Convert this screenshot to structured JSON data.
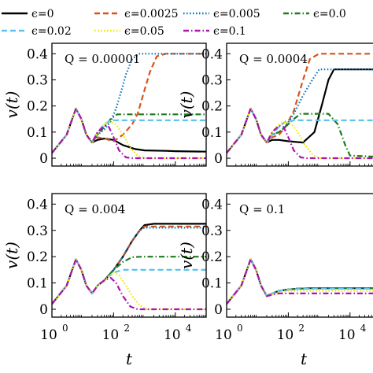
{
  "chart_data": {
    "type": "line",
    "panel_layout": "2x2 grid, right column cropped at image edge",
    "xlabel": "t",
    "ylabel": "v(t)",
    "xscale": "log",
    "xlim": [
      1,
      100000
    ],
    "ylim": [
      -0.03,
      0.44
    ],
    "xtick_labels": [
      {
        "base": "10",
        "exp": "0"
      },
      {
        "base": "10",
        "exp": "2"
      },
      {
        "base": "10",
        "exp": "4"
      }
    ],
    "ytick_labels": [
      "0",
      "0.1",
      "0.2",
      "0.3",
      "0.4"
    ],
    "grid": false,
    "legend": {
      "placement": "top, above panels, 4 columns",
      "entries": [
        {
          "text": "ϵ=0",
          "color": "#000000",
          "dash": "solid"
        },
        {
          "text": "ϵ=0.0025",
          "color": "#d95319",
          "dash": "dashed"
        },
        {
          "text": "ϵ=0.005",
          "color": "#0072bd",
          "dash": "dotted"
        },
        {
          "text": "ϵ=0.0",
          "color": "#1e7b1e",
          "dash": "dashdot"
        },
        {
          "text": "ϵ=0.02",
          "color": "#5fc3ee",
          "dash": "dashed"
        },
        {
          "text": "ϵ=0.05",
          "color": "#f2e600",
          "dash": "dotted"
        },
        {
          "text": "ϵ=0.1",
          "color": "#b012b0",
          "dash": "dashdot"
        }
      ]
    },
    "panels": [
      {
        "label": "Q = 0.00001",
        "series": [
          {
            "name": "ϵ=0",
            "x": [
              1,
              3,
              6,
              9,
              13,
              20,
              30,
              50,
              100,
              200,
              500,
              1000,
              5000,
              10000,
              100000
            ],
            "y": [
              0.02,
              0.09,
              0.19,
              0.15,
              0.09,
              0.06,
              0.07,
              0.075,
              0.07,
              0.05,
              0.035,
              0.03,
              0.028,
              0.027,
              0.025
            ]
          },
          {
            "name": "ϵ=0.0025",
            "x": [
              1,
              3,
              6,
              9,
              13,
              20,
              30,
              50,
              100,
              200,
              400,
              600,
              1000,
              1500,
              2500,
              5000,
              100000
            ],
            "y": [
              0.02,
              0.09,
              0.19,
              0.15,
              0.09,
              0.06,
              0.08,
              0.075,
              0.065,
              0.09,
              0.13,
              0.17,
              0.26,
              0.33,
              0.39,
              0.4,
              0.4
            ]
          },
          {
            "name": "ϵ=0.005",
            "x": [
              1,
              3,
              6,
              9,
              13,
              20,
              30,
              50,
              80,
              120,
              180,
              250,
              400,
              700,
              1000,
              100000
            ],
            "y": [
              0.02,
              0.09,
              0.19,
              0.15,
              0.09,
              0.06,
              0.09,
              0.11,
              0.14,
              0.19,
              0.26,
              0.32,
              0.38,
              0.4,
              0.4,
              0.4
            ]
          },
          {
            "name": "ϵ=0.0",
            "x": [
              1,
              3,
              6,
              9,
              13,
              20,
              30,
              50,
              80,
              130,
              100000
            ],
            "y": [
              0.02,
              0.09,
              0.19,
              0.15,
              0.09,
              0.06,
              0.09,
              0.12,
              0.15,
              0.168,
              0.168
            ]
          },
          {
            "name": "ϵ=0.02",
            "x": [
              1,
              3,
              6,
              9,
              13,
              20,
              30,
              50,
              80,
              100000
            ],
            "y": [
              0.02,
              0.09,
              0.19,
              0.15,
              0.09,
              0.06,
              0.1,
              0.13,
              0.145,
              0.145
            ]
          },
          {
            "name": "ϵ=0.05",
            "x": [
              1,
              3,
              6,
              9,
              13,
              20,
              30,
              50,
              80,
              120,
              200,
              350,
              600,
              1000,
              100000
            ],
            "y": [
              0.02,
              0.09,
              0.19,
              0.15,
              0.09,
              0.06,
              0.1,
              0.13,
              0.14,
              0.13,
              0.09,
              0.04,
              0.01,
              0,
              0
            ]
          },
          {
            "name": "ϵ=0.1",
            "x": [
              1,
              3,
              6,
              9,
              13,
              20,
              30,
              50,
              70,
              100,
              150,
              250,
              400,
              100000
            ],
            "y": [
              0.02,
              0.09,
              0.19,
              0.15,
              0.09,
              0.06,
              0.1,
              0.125,
              0.12,
              0.08,
              0.03,
              0.003,
              0,
              0
            ]
          }
        ]
      },
      {
        "label": "Q = 0.0004",
        "series": [
          {
            "name": "ϵ=0",
            "x": [
              1,
              3,
              6,
              9,
              13,
              20,
              30,
              50,
              100,
              300,
              700,
              1200,
              2000,
              3000,
              100000
            ],
            "y": [
              0.02,
              0.09,
              0.19,
              0.15,
              0.09,
              0.06,
              0.07,
              0.07,
              0.065,
              0.06,
              0.1,
              0.2,
              0.3,
              0.34,
              0.34
            ]
          },
          {
            "name": "ϵ=0.0025",
            "x": [
              1,
              3,
              6,
              9,
              13,
              20,
              30,
              50,
              80,
              150,
              300,
              500,
              1000,
              100000
            ],
            "y": [
              0.02,
              0.09,
              0.19,
              0.15,
              0.09,
              0.06,
              0.08,
              0.09,
              0.12,
              0.18,
              0.3,
              0.38,
              0.4,
              0.4
            ]
          },
          {
            "name": "ϵ=0.005",
            "x": [
              1,
              3,
              6,
              9,
              13,
              20,
              30,
              50,
              80,
              150,
              300,
              600,
              1000,
              2500,
              100000
            ],
            "y": [
              0.02,
              0.09,
              0.19,
              0.15,
              0.09,
              0.06,
              0.09,
              0.1,
              0.12,
              0.17,
              0.24,
              0.3,
              0.34,
              0.34,
              0.34
            ]
          },
          {
            "name": "ϵ=0.0",
            "x": [
              1,
              3,
              6,
              9,
              13,
              20,
              30,
              50,
              80,
              150,
              250,
              400,
              600,
              2000,
              4000,
              7000,
              10000,
              100000
            ],
            "y": [
              0.02,
              0.09,
              0.19,
              0.15,
              0.09,
              0.06,
              0.09,
              0.1,
              0.12,
              0.15,
              0.17,
              0.17,
              0.17,
              0.17,
              0.13,
              0.05,
              0.01,
              0.005
            ]
          },
          {
            "name": "ϵ=0.02",
            "x": [
              1,
              3,
              6,
              9,
              13,
              20,
              30,
              50,
              80,
              150,
              100000
            ],
            "y": [
              0.02,
              0.09,
              0.19,
              0.15,
              0.09,
              0.06,
              0.09,
              0.12,
              0.14,
              0.145,
              0.145
            ]
          },
          {
            "name": "ϵ=0.05",
            "x": [
              1,
              3,
              6,
              9,
              13,
              20,
              30,
              50,
              80,
              130,
              200,
              350,
              600,
              1000,
              100000
            ],
            "y": [
              0.02,
              0.09,
              0.19,
              0.15,
              0.09,
              0.06,
              0.1,
              0.13,
              0.14,
              0.13,
              0.1,
              0.05,
              0.015,
              0,
              0
            ]
          },
          {
            "name": "ϵ=0.1",
            "x": [
              1,
              3,
              6,
              9,
              13,
              20,
              30,
              50,
              70,
              100,
              150,
              250,
              400,
              100000
            ],
            "y": [
              0.02,
              0.09,
              0.19,
              0.15,
              0.09,
              0.06,
              0.1,
              0.125,
              0.12,
              0.08,
              0.03,
              0.003,
              0,
              0
            ]
          }
        ]
      },
      {
        "label": "Q = 0.004",
        "series": [
          {
            "name": "ϵ=0",
            "x": [
              1,
              3,
              6,
              9,
              13,
              20,
              30,
              50,
              100,
              200,
              400,
              700,
              1000,
              2000,
              100000
            ],
            "y": [
              0.02,
              0.09,
              0.19,
              0.15,
              0.09,
              0.06,
              0.09,
              0.11,
              0.15,
              0.2,
              0.26,
              0.3,
              0.32,
              0.325,
              0.325
            ]
          },
          {
            "name": "ϵ=0.0025",
            "x": [
              1,
              3,
              6,
              9,
              13,
              20,
              30,
              50,
              100,
              200,
              400,
              700,
              1000,
              2000,
              100000
            ],
            "y": [
              0.02,
              0.09,
              0.19,
              0.15,
              0.09,
              0.06,
              0.09,
              0.11,
              0.15,
              0.2,
              0.26,
              0.3,
              0.315,
              0.315,
              0.315
            ]
          },
          {
            "name": "ϵ=0.005",
            "x": [
              1,
              3,
              6,
              9,
              13,
              20,
              30,
              50,
              100,
              200,
              400,
              700,
              1000,
              2000,
              100000
            ],
            "y": [
              0.02,
              0.09,
              0.19,
              0.15,
              0.09,
              0.06,
              0.09,
              0.11,
              0.15,
              0.2,
              0.26,
              0.3,
              0.31,
              0.31,
              0.31
            ]
          },
          {
            "name": "ϵ=0.0",
            "x": [
              1,
              3,
              6,
              9,
              13,
              20,
              30,
              50,
              100,
              200,
              400,
              800,
              100000
            ],
            "y": [
              0.02,
              0.09,
              0.19,
              0.15,
              0.09,
              0.06,
              0.09,
              0.11,
              0.15,
              0.18,
              0.198,
              0.2,
              0.2
            ]
          },
          {
            "name": "ϵ=0.02",
            "x": [
              1,
              3,
              6,
              9,
              13,
              20,
              30,
              50,
              100,
              200,
              300,
              500,
              100000
            ],
            "y": [
              0.02,
              0.09,
              0.19,
              0.15,
              0.09,
              0.06,
              0.09,
              0.11,
              0.14,
              0.15,
              0.15,
              0.15,
              0.15
            ]
          },
          {
            "name": "ϵ=0.05",
            "x": [
              1,
              3,
              6,
              9,
              13,
              20,
              30,
              50,
              100,
              150,
              250,
              400,
              700,
              1200,
              100000
            ],
            "y": [
              0.02,
              0.09,
              0.19,
              0.15,
              0.09,
              0.06,
              0.09,
              0.11,
              0.14,
              0.13,
              0.09,
              0.05,
              0.015,
              0,
              0
            ]
          },
          {
            "name": "ϵ=0.1",
            "x": [
              1,
              3,
              6,
              9,
              13,
              20,
              30,
              50,
              80,
              120,
              200,
              350,
              600,
              100000
            ],
            "y": [
              0.02,
              0.09,
              0.19,
              0.15,
              0.09,
              0.06,
              0.09,
              0.11,
              0.12,
              0.1,
              0.05,
              0.01,
              0,
              0
            ]
          }
        ]
      },
      {
        "label": "Q = 0.1",
        "series": [
          {
            "name": "ϵ=0",
            "x": [
              1,
              3,
              6,
              9,
              13,
              20,
              30,
              50,
              100,
              200,
              500,
              100000
            ],
            "y": [
              0.02,
              0.09,
              0.19,
              0.15,
              0.09,
              0.05,
              0.06,
              0.07,
              0.075,
              0.078,
              0.08,
              0.08
            ]
          },
          {
            "name": "ϵ=0.0025",
            "x": [
              1,
              3,
              6,
              9,
              13,
              20,
              30,
              50,
              100,
              200,
              500,
              100000
            ],
            "y": [
              0.02,
              0.09,
              0.19,
              0.15,
              0.09,
              0.05,
              0.06,
              0.07,
              0.075,
              0.078,
              0.08,
              0.08
            ]
          },
          {
            "name": "ϵ=0.005",
            "x": [
              1,
              3,
              6,
              9,
              13,
              20,
              30,
              50,
              100,
              200,
              500,
              100000
            ],
            "y": [
              0.02,
              0.09,
              0.19,
              0.15,
              0.09,
              0.05,
              0.06,
              0.07,
              0.075,
              0.078,
              0.08,
              0.08
            ]
          },
          {
            "name": "ϵ=0.0",
            "x": [
              1,
              3,
              6,
              9,
              13,
              20,
              30,
              50,
              100,
              200,
              500,
              100000
            ],
            "y": [
              0.02,
              0.09,
              0.19,
              0.15,
              0.09,
              0.05,
              0.06,
              0.07,
              0.075,
              0.078,
              0.08,
              0.08
            ]
          },
          {
            "name": "ϵ=0.02",
            "x": [
              1,
              3,
              6,
              9,
              13,
              20,
              30,
              50,
              100,
              200,
              500,
              100000
            ],
            "y": [
              0.02,
              0.09,
              0.19,
              0.15,
              0.09,
              0.05,
              0.06,
              0.07,
              0.075,
              0.077,
              0.078,
              0.078
            ]
          },
          {
            "name": "ϵ=0.05",
            "x": [
              1,
              3,
              6,
              9,
              13,
              20,
              30,
              50,
              100,
              200,
              500,
              100000
            ],
            "y": [
              0.02,
              0.09,
              0.19,
              0.15,
              0.09,
              0.05,
              0.055,
              0.065,
              0.07,
              0.07,
              0.07,
              0.07
            ]
          },
          {
            "name": "ϵ=0.1",
            "x": [
              1,
              3,
              6,
              9,
              13,
              20,
              30,
              50,
              100,
              200,
              500,
              100000
            ],
            "y": [
              0.02,
              0.09,
              0.19,
              0.15,
              0.09,
              0.05,
              0.055,
              0.06,
              0.06,
              0.06,
              0.06,
              0.06
            ]
          }
        ]
      }
    ]
  }
}
